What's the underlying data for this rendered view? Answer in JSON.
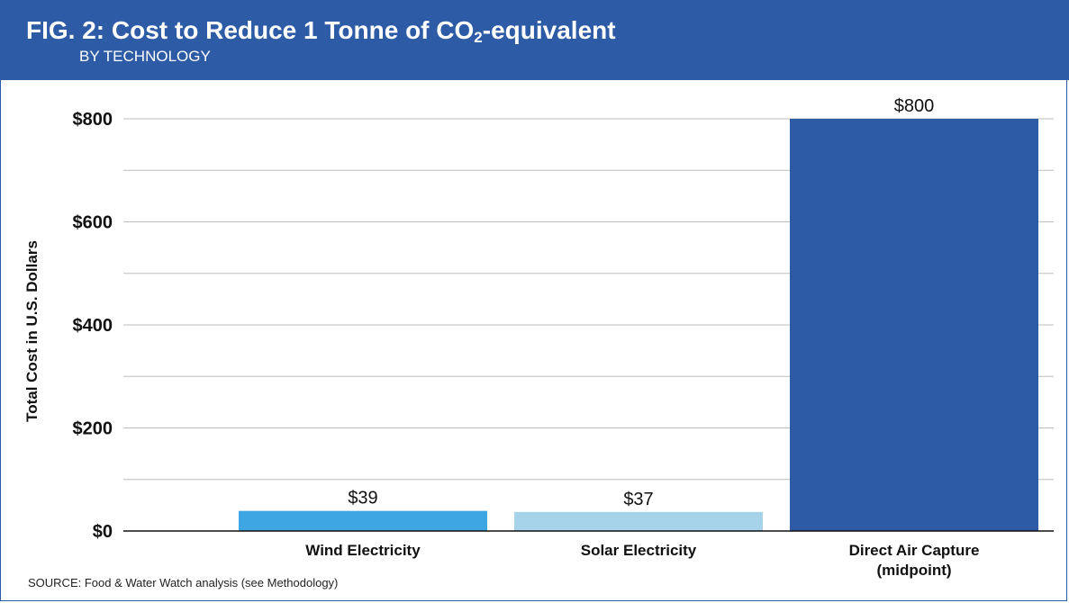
{
  "header": {
    "fig_label": "FIG. 2:",
    "title_before": "Cost to Reduce 1 Tonne of CO",
    "title_sub": "2",
    "title_after": "-equivalent",
    "subtitle": "BY TECHNOLOGY"
  },
  "source": "SOURCE: Food & Water Watch analysis (see Methodology)",
  "colors": {
    "header_bg": "#2d5ba6",
    "wind": "#3ea6e3",
    "solar": "#a7d3ea",
    "dac": "#2d5ba6",
    "grid": "#bdbdbd"
  },
  "chart_data": {
    "type": "bar",
    "title": "Cost to Reduce 1 Tonne of CO2-equivalent",
    "subtitle": "BY TECHNOLOGY",
    "ylabel": "Total Cost in U.S. Dollars",
    "xlabel": "",
    "ylim": [
      0,
      800
    ],
    "yticks": [
      0,
      200,
      400,
      600,
      800
    ],
    "ytick_labels": [
      "$0",
      "$200",
      "$400",
      "$600",
      "$800"
    ],
    "grid": true,
    "categories": [
      {
        "lines": [
          "Wind Electricity"
        ],
        "value": 39,
        "label": "$39",
        "color": "#3ea6e3"
      },
      {
        "lines": [
          "Solar Electricity"
        ],
        "value": 37,
        "label": "$37",
        "color": "#a7d3ea"
      },
      {
        "lines": [
          "Direct Air Capture",
          "(midpoint)"
        ],
        "value": 800,
        "label": "$800",
        "color": "#2d5ba6"
      }
    ]
  }
}
